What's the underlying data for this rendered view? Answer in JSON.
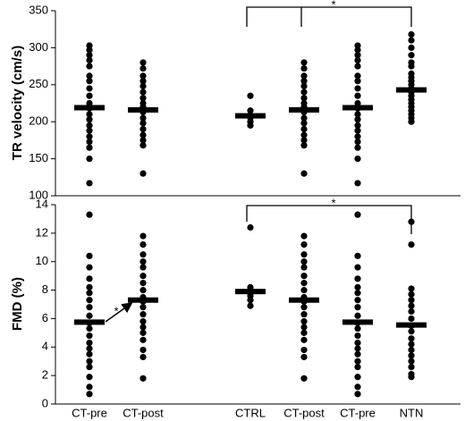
{
  "chart_data": [
    {
      "type": "strip",
      "ylabel": "TR velocity (cm/s)",
      "categories": [
        null,
        null,
        null,
        null,
        null,
        null,
        null
      ],
      "points": [
        [
          303,
          297,
          290,
          283,
          275,
          262,
          255,
          245,
          235,
          225,
          218,
          210,
          203,
          195,
          188,
          180,
          173,
          165,
          150,
          117
        ],
        [
          280,
          272,
          262,
          255,
          248,
          240,
          232,
          225,
          220,
          213,
          205,
          198,
          190,
          182,
          175,
          168,
          130
        ],
        [],
        [
          235,
          215,
          205,
          200,
          195
        ],
        [
          280,
          272,
          262,
          255,
          248,
          240,
          232,
          225,
          220,
          213,
          205,
          198,
          190,
          182,
          175,
          168,
          130
        ],
        [
          303,
          297,
          290,
          283,
          275,
          262,
          255,
          245,
          235,
          225,
          218,
          210,
          203,
          195,
          188,
          180,
          173,
          165,
          150,
          117
        ],
        [
          318,
          310,
          300,
          290,
          280,
          275,
          265,
          260,
          255,
          250,
          245,
          240,
          235,
          230,
          225,
          220,
          215,
          210,
          205,
          200
        ]
      ],
      "means": [
        219,
        216,
        null,
        208,
        216,
        219,
        243
      ],
      "color": "#000000",
      "ylim": [
        100,
        350
      ],
      "yticks": [
        100,
        150,
        200,
        250,
        300,
        350
      ],
      "annotations": [
        "*"
      ]
    },
    {
      "type": "strip",
      "ylabel": "FMD (%)",
      "categories": [
        "CT-pre",
        "CT-post",
        null,
        "CTRL",
        "CT-post",
        "CT-pre",
        "NTN"
      ],
      "points": [
        [
          13.3,
          10.4,
          9.6,
          8.8,
          8.2,
          7.8,
          7.3,
          6.8,
          6.2,
          5.7,
          5.3,
          4.8,
          4.3,
          3.9,
          3.5,
          3.0,
          2.6,
          1.9,
          1.2,
          0.7
        ],
        [
          11.8,
          11.2,
          10.5,
          10.0,
          9.6,
          9.0,
          8.5,
          8.0,
          7.5,
          7.2,
          6.8,
          6.3,
          5.8,
          5.4,
          5.0,
          4.5,
          3.8,
          3.3,
          1.8
        ],
        [],
        [
          12.4,
          8.2,
          8.0,
          7.8,
          7.6,
          7.3,
          6.9
        ],
        [
          11.8,
          11.2,
          10.5,
          10.0,
          9.6,
          9.0,
          8.5,
          8.0,
          7.5,
          7.2,
          6.8,
          6.3,
          5.8,
          5.4,
          5.0,
          4.5,
          3.8,
          3.3,
          1.8
        ],
        [
          13.3,
          10.4,
          9.6,
          8.8,
          8.2,
          7.8,
          7.3,
          6.8,
          6.2,
          5.7,
          5.3,
          4.8,
          4.3,
          3.9,
          3.5,
          3.0,
          2.6,
          1.9,
          1.2,
          0.7
        ],
        [
          12.8,
          11.2,
          8.1,
          7.7,
          7.3,
          6.9,
          6.5,
          6.0,
          5.5,
          5.1,
          4.6,
          4.2,
          3.8,
          3.4,
          3.0,
          2.6,
          2.1,
          1.9
        ]
      ],
      "means": [
        5.75,
        7.3,
        null,
        7.9,
        7.3,
        5.75,
        5.55
      ],
      "color": "#000000",
      "ylim": [
        0,
        14
      ],
      "yticks": [
        0,
        2,
        4,
        6,
        8,
        10,
        12,
        14
      ],
      "annotations": [
        "*",
        "*"
      ]
    }
  ]
}
